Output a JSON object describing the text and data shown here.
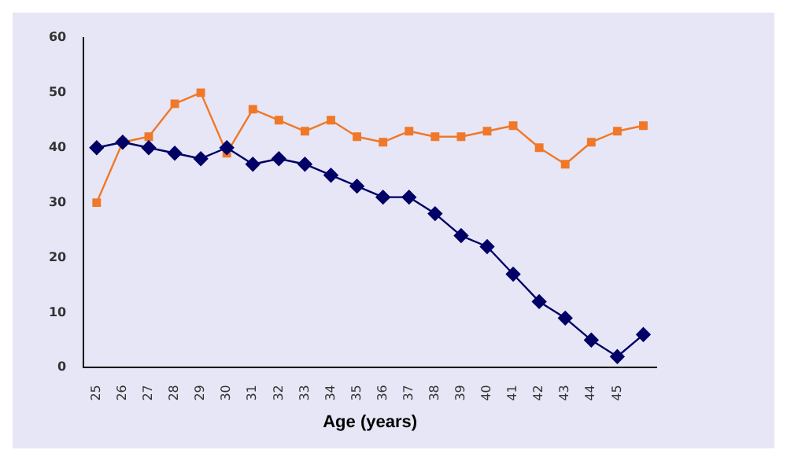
{
  "chart_data": {
    "type": "line",
    "xlabel": "Age (years)",
    "categories": [
      "25",
      "26",
      "27",
      "28",
      "29",
      "30",
      "31",
      "32",
      "33",
      "34",
      "35",
      "36",
      "37",
      "38",
      "39",
      "40",
      "41",
      "42",
      "43",
      "44",
      "45",
      null
    ],
    "series": [
      {
        "color": "#f07828",
        "marker": "square",
        "values": [
          30,
          41,
          42,
          48,
          50,
          39,
          47,
          45,
          43,
          45,
          42,
          41,
          43,
          42,
          42,
          43,
          44,
          40,
          37,
          41,
          43,
          44
        ]
      },
      {
        "color": "#000066",
        "marker": "diamond",
        "values": [
          40,
          41,
          40,
          39,
          38,
          40,
          37,
          38,
          37,
          35,
          33,
          31,
          31,
          28,
          24,
          22,
          17,
          12,
          9,
          5,
          2,
          6
        ]
      }
    ],
    "ylim": [
      0,
      60
    ],
    "yticks": [
      0,
      10,
      20,
      30,
      40,
      50,
      60
    ],
    "grid": false,
    "legend": false,
    "line_style": "solid"
  }
}
